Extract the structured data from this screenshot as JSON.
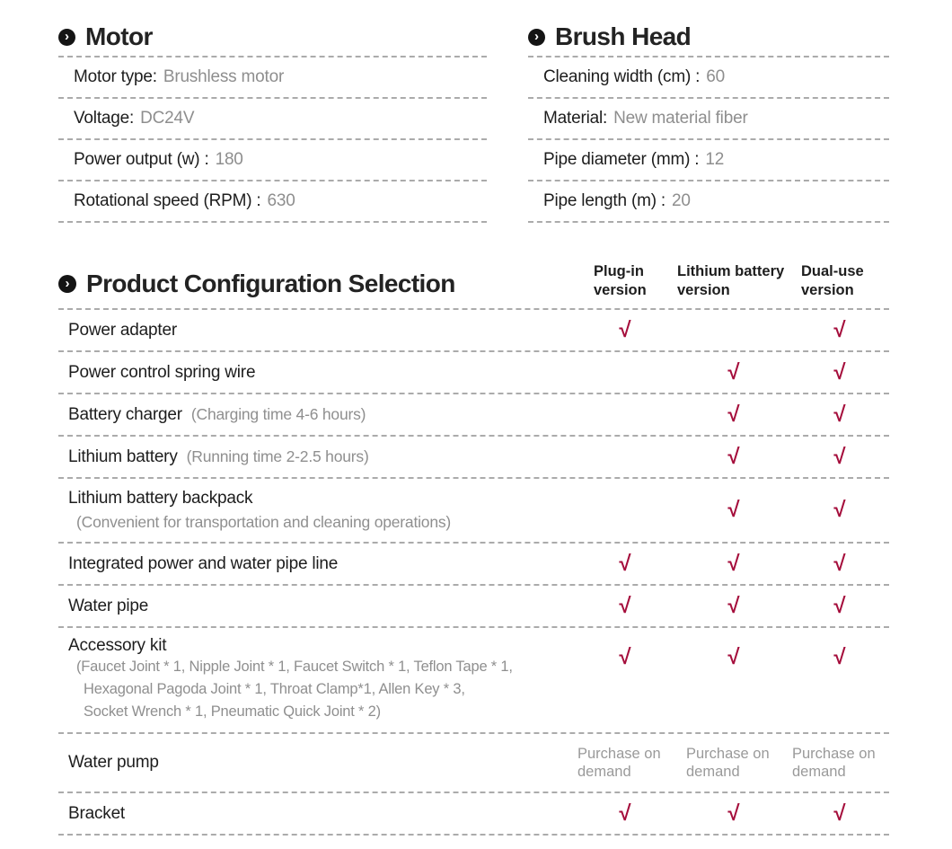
{
  "icons": {
    "section_bullet_glyph": "›"
  },
  "check_glyph": "√",
  "sections": {
    "motor": {
      "title": "Motor",
      "rows": [
        {
          "label": "Motor type:",
          "value": "Brushless motor"
        },
        {
          "label": "Voltage:",
          "value": "DC24V"
        },
        {
          "label": "Power output (w) :",
          "value": "180"
        },
        {
          "label": "Rotational speed (RPM) :",
          "value": "630"
        }
      ]
    },
    "brush_head": {
      "title": "Brush Head",
      "rows": [
        {
          "label": "Cleaning width (cm) :",
          "value": "60"
        },
        {
          "label": "Material:",
          "value": "New material fiber"
        },
        {
          "label": "Pipe diameter (mm) :",
          "value": "12"
        },
        {
          "label": "Pipe length (m) :",
          "value": "20"
        }
      ]
    }
  },
  "config": {
    "title": "Product Configuration Selection",
    "columns": [
      "Plug-in version",
      "Lithium battery version",
      "Dual-use version"
    ],
    "purchase_label": "Purchase on demand",
    "rows": [
      {
        "label": "Power adapter",
        "checks": [
          true,
          false,
          true
        ]
      },
      {
        "label": "Power control spring wire",
        "checks": [
          false,
          true,
          true
        ]
      },
      {
        "label": "Battery charger",
        "note": "(Charging time 4-6 hours)",
        "checks": [
          false,
          true,
          true
        ]
      },
      {
        "label": "Lithium battery",
        "note": "(Running time 2-2.5 hours)",
        "checks": [
          false,
          true,
          true
        ]
      },
      {
        "label": "Lithium battery backpack",
        "note_block": "(Convenient for transportation and cleaning operations)",
        "checks": [
          false,
          true,
          true
        ]
      },
      {
        "label": "Integrated power and water pipe line",
        "checks": [
          true,
          true,
          true
        ]
      },
      {
        "label": "Water pipe",
        "checks": [
          true,
          true,
          true
        ]
      },
      {
        "label": "Accessory kit",
        "note_lines": [
          "(Faucet Joint * 1, Nipple Joint * 1, Faucet Switch * 1, Teflon Tape * 1,",
          "Hexagonal Pagoda Joint * 1,  Throat Clamp*1, Allen Key * 3,",
          "Socket Wrench * 1, Pneumatic Quick Joint * 2)"
        ],
        "checks": [
          true,
          true,
          true
        ]
      },
      {
        "label": "Water pump",
        "purchase": true
      },
      {
        "label": "Bracket",
        "checks": [
          true,
          true,
          true
        ]
      }
    ]
  }
}
